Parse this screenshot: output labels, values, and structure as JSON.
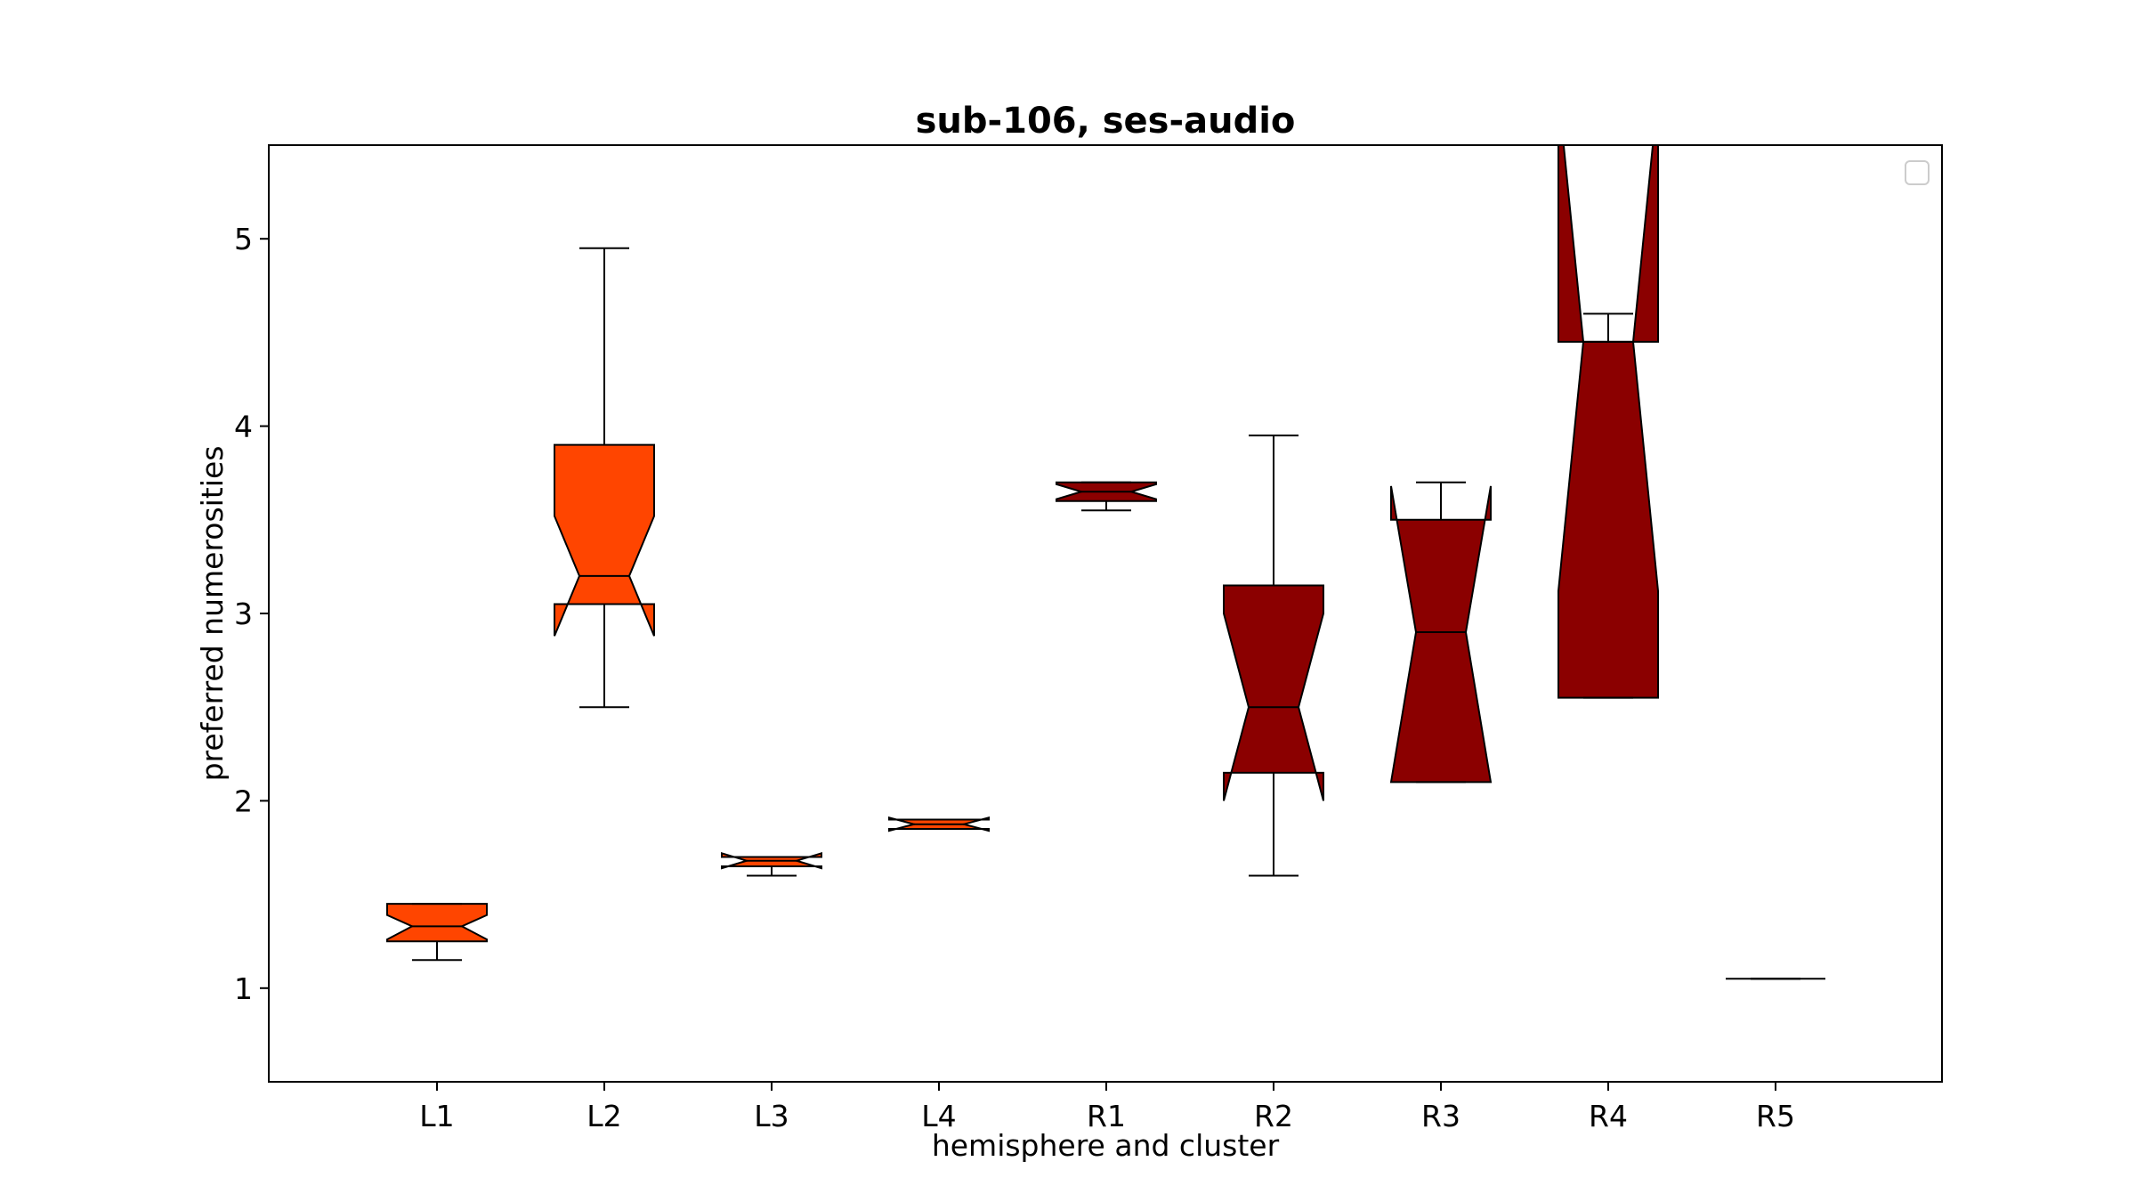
{
  "chart_data": {
    "type": "box",
    "title": "sub-106, ses-audio",
    "xlabel": "hemisphere and cluster",
    "ylabel": "preferred numerosities",
    "ylim": [
      0.5,
      5.5
    ],
    "yticks": [
      1,
      2,
      3,
      4,
      5
    ],
    "grid": false,
    "legend": {
      "placement": "top-right",
      "entries": []
    },
    "notched": true,
    "colors": {
      "left": "#ff4500",
      "right": "#8b0000",
      "edge": "#000000"
    },
    "categories": [
      "L1",
      "L2",
      "L3",
      "L4",
      "R1",
      "R2",
      "R3",
      "R4",
      "R5"
    ],
    "boxes": [
      {
        "label": "L1",
        "hemisphere": "left",
        "whislo": 1.15,
        "q1": 1.25,
        "med": 1.33,
        "q3": 1.45,
        "whishi": 1.45,
        "notch_lo": 1.26,
        "notch_hi": 1.39
      },
      {
        "label": "L2",
        "hemisphere": "left",
        "whislo": 2.5,
        "q1": 3.05,
        "med": 3.2,
        "q3": 3.9,
        "whishi": 4.95,
        "notch_lo": 2.88,
        "notch_hi": 3.52
      },
      {
        "label": "L3",
        "hemisphere": "left",
        "whislo": 1.6,
        "q1": 1.65,
        "med": 1.68,
        "q3": 1.7,
        "whishi": 1.7,
        "notch_lo": 1.64,
        "notch_hi": 1.72
      },
      {
        "label": "L4",
        "hemisphere": "left",
        "whislo": 1.85,
        "q1": 1.85,
        "med": 1.875,
        "q3": 1.9,
        "whishi": 1.9,
        "notch_lo": 1.84,
        "notch_hi": 1.91
      },
      {
        "label": "R1",
        "hemisphere": "right",
        "whislo": 3.55,
        "q1": 3.6,
        "med": 3.65,
        "q3": 3.7,
        "whishi": 3.7,
        "notch_lo": 3.61,
        "notch_hi": 3.69
      },
      {
        "label": "R2",
        "hemisphere": "right",
        "whislo": 1.6,
        "q1": 2.15,
        "med": 2.5,
        "q3": 3.15,
        "whishi": 3.95,
        "notch_lo": 2.0,
        "notch_hi": 3.0
      },
      {
        "label": "R3",
        "hemisphere": "right",
        "whislo": 2.1,
        "q1": 2.1,
        "med": 2.9,
        "q3": 3.5,
        "whishi": 3.7,
        "notch_lo": 2.1,
        "notch_hi": 3.68
      },
      {
        "label": "R4",
        "hemisphere": "right",
        "whislo": 2.55,
        "q1": 2.55,
        "med": 4.45,
        "q3": 4.45,
        "whishi": 4.6,
        "notch_lo": 3.12,
        "notch_hi": 5.78
      },
      {
        "label": "R5",
        "hemisphere": "right",
        "whislo": 1.05,
        "q1": 1.05,
        "med": 1.05,
        "q3": 1.05,
        "whishi": 1.05,
        "notch_lo": 1.05,
        "notch_hi": 1.05
      }
    ]
  }
}
